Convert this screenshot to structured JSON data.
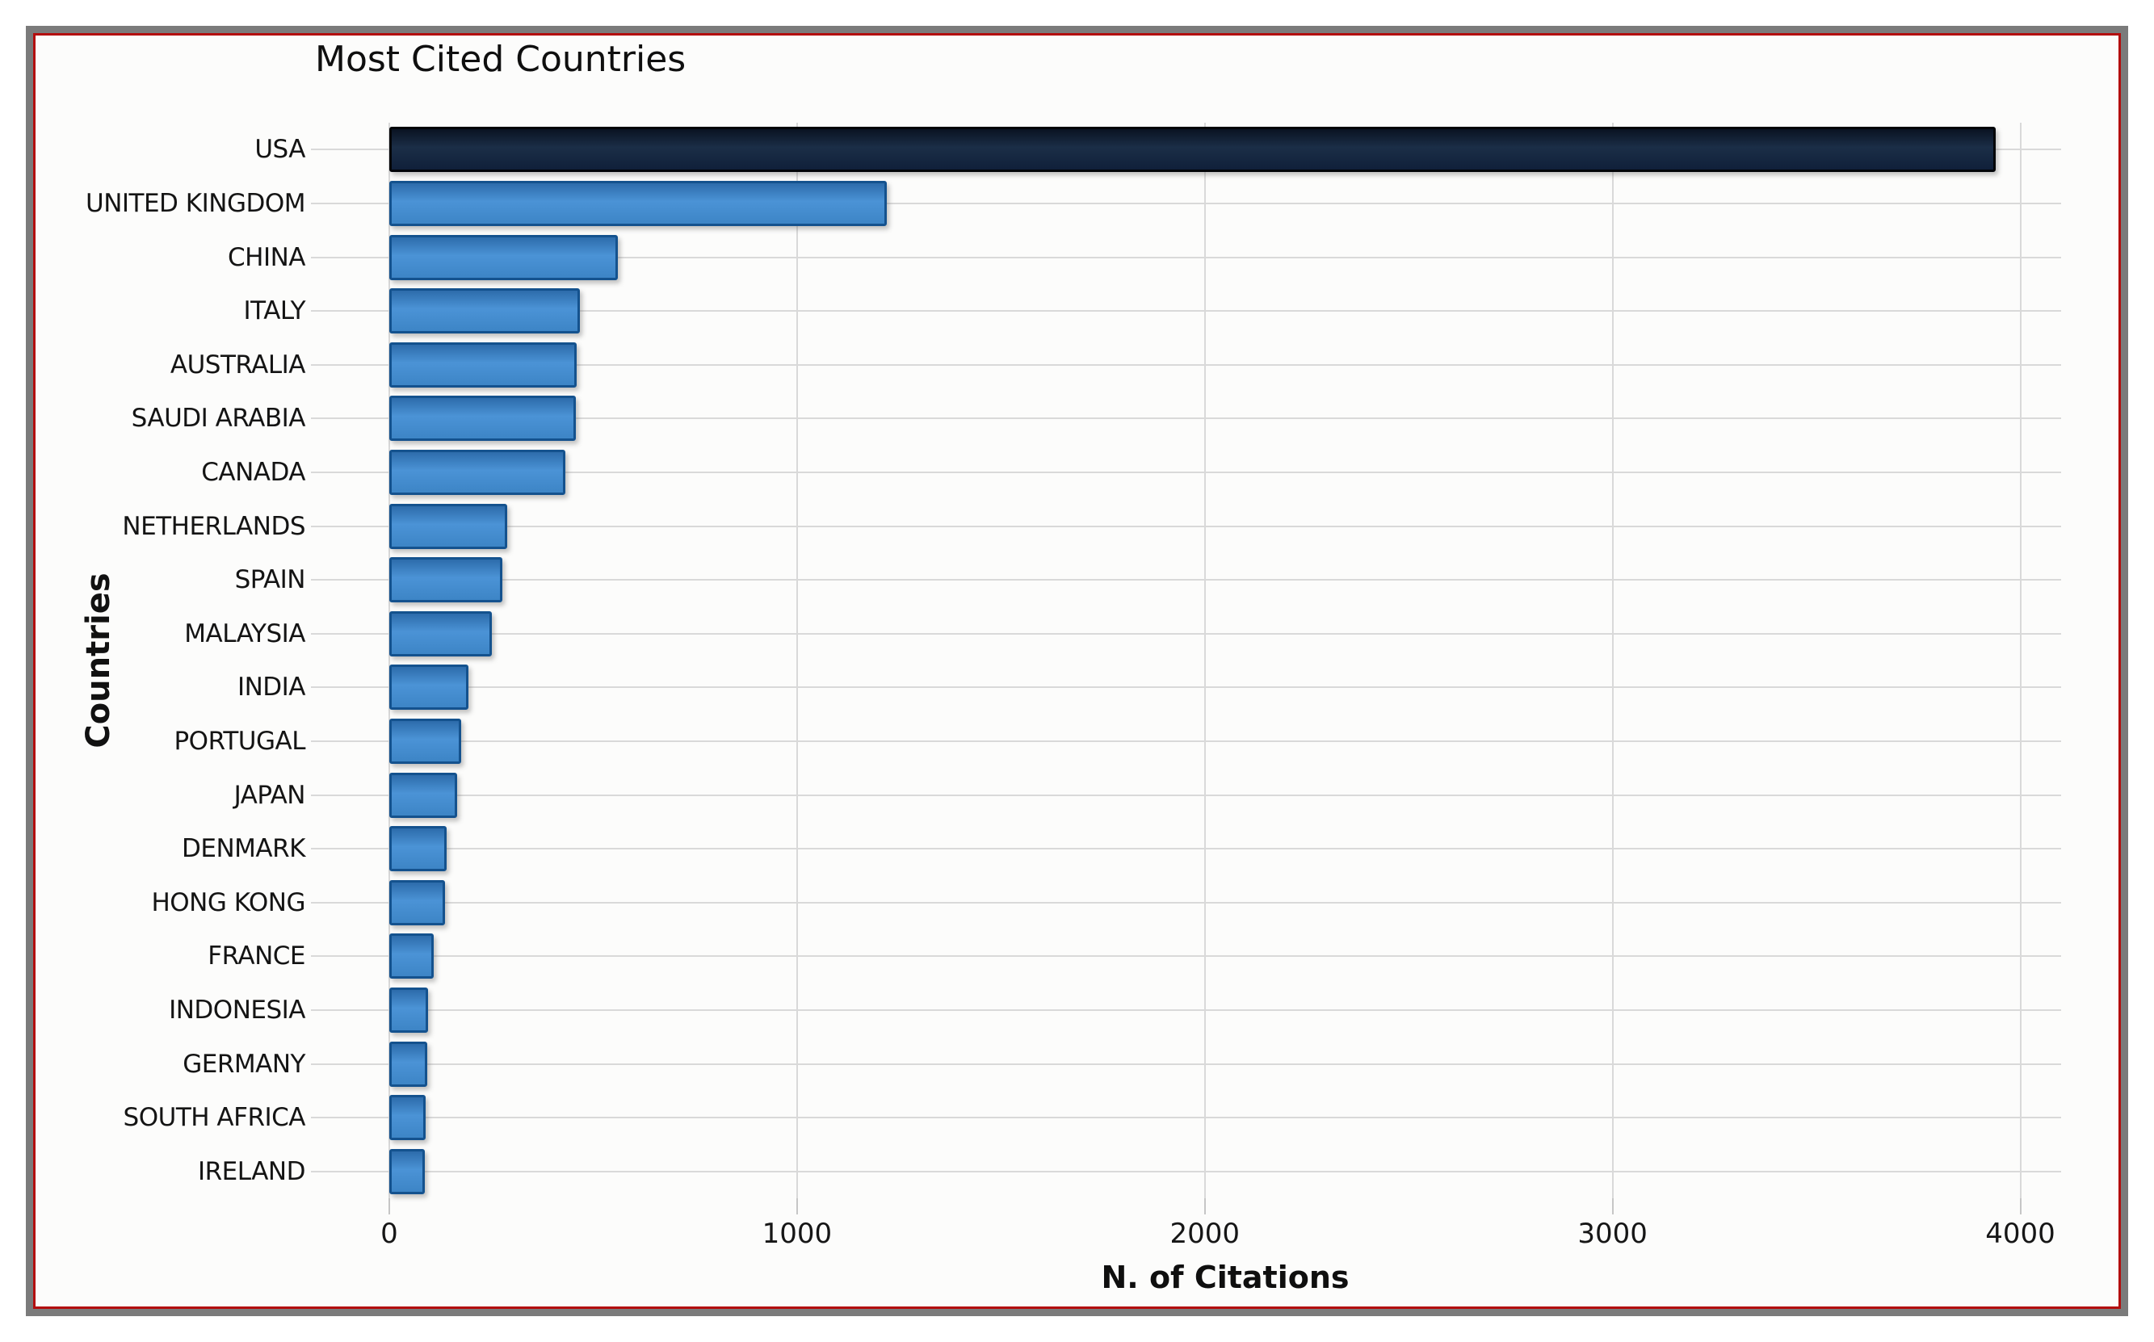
{
  "figure": {
    "border_outer_color": "#7b7b7b",
    "border_inner_color": "#b30d0d",
    "background": "#fcfcfb",
    "grid_color": "#d9d9d9",
    "tick_color": "#c6c6c6"
  },
  "chart_data": {
    "type": "bar",
    "orientation": "horizontal",
    "title": "Most Cited Countries",
    "xlabel": "N. of Citations",
    "ylabel": "Countries",
    "categories": [
      "USA",
      "UNITED KINGDOM",
      "CHINA",
      "ITALY",
      "AUSTRALIA",
      "SAUDI ARABIA",
      "CANADA",
      "NETHERLANDS",
      "SPAIN",
      "MALAYSIA",
      "INDIA",
      "PORTUGAL",
      "JAPAN",
      "DENMARK",
      "HONG KONG",
      "FRANCE",
      "INDONESIA",
      "GERMANY",
      "SOUTH AFRICA",
      "IRELAND"
    ],
    "values": [
      3940,
      1220,
      560,
      467,
      460,
      458,
      431,
      290,
      277,
      251,
      194,
      176,
      167,
      140,
      136,
      109,
      95,
      94,
      89,
      87
    ],
    "xlim": [
      0,
      4100
    ],
    "xticks": [
      0,
      1000,
      2000,
      3000,
      4000
    ],
    "grid": "on",
    "legend": "none",
    "bar_colors": {
      "fill_top": "#2d6cab",
      "fill_mid": "#4b93d6",
      "fill_bottom": "#3d85c6",
      "border": "#14528e"
    },
    "highlight_index": 0,
    "highlight_colors": {
      "fill_top": "#0a1322",
      "fill_mid": "#1b2e47",
      "fill_bottom": "#10203a",
      "border": "#020408"
    }
  }
}
